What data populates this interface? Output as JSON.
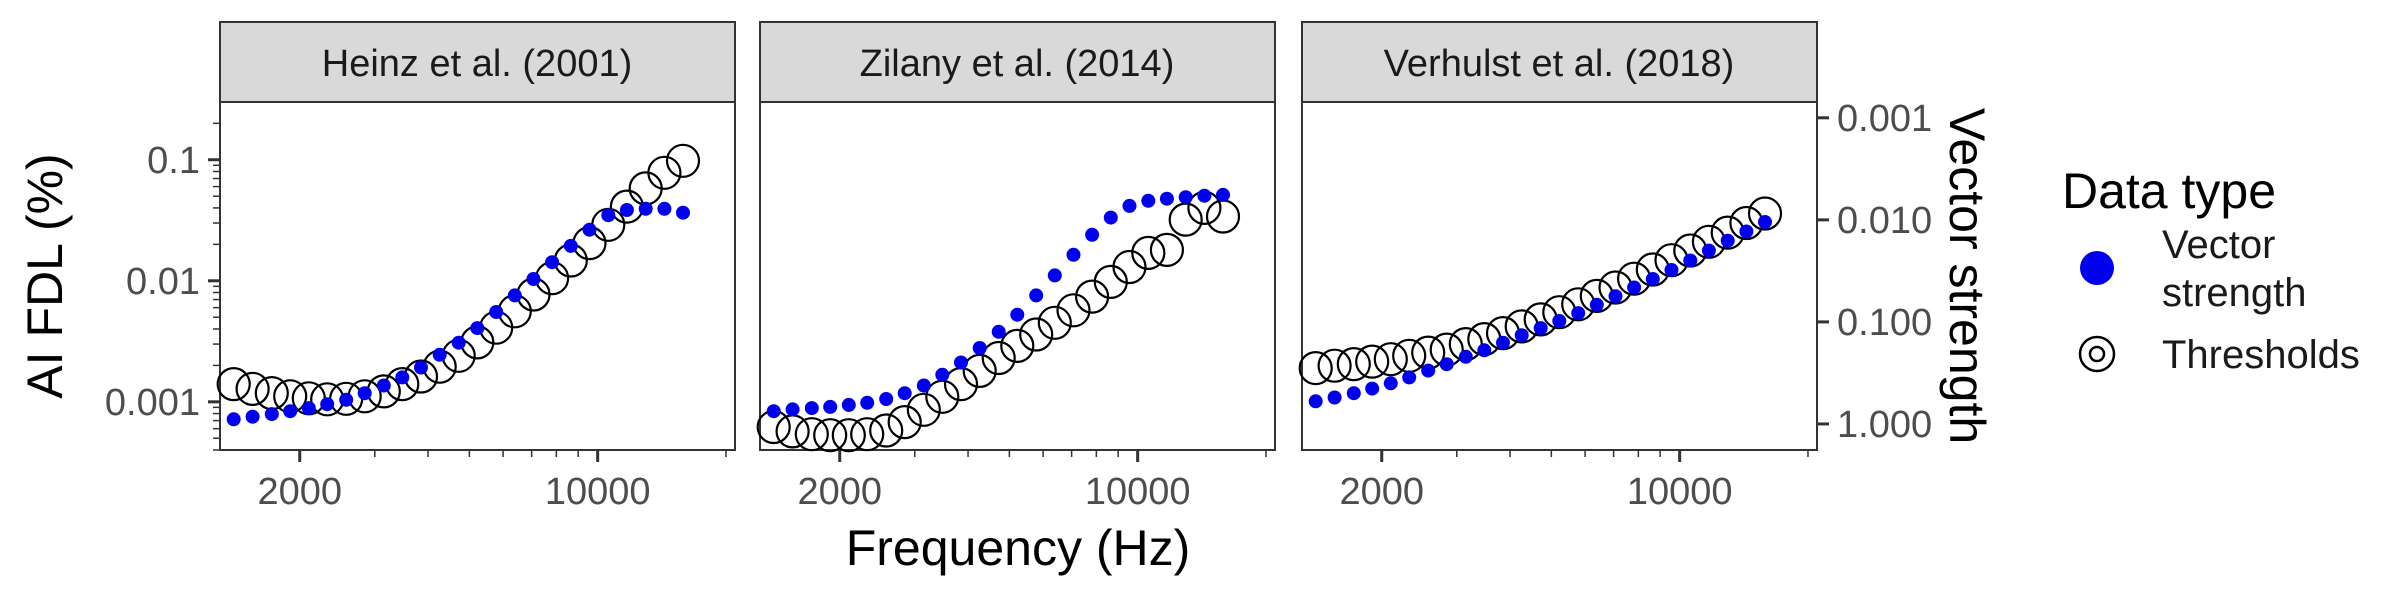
{
  "figure": {
    "xlabel": "Frequency (Hz)",
    "ylabel_left": "AI FDL (%)",
    "ylabel_right": "Vector strength",
    "legend_title": "Data type",
    "legend_items": [
      {
        "label_lines": [
          "Vector",
          "strength"
        ],
        "marker": "filled-circle",
        "color": "#0000ee"
      },
      {
        "label_lines": [
          "Thresholds"
        ],
        "marker": "open-circle",
        "color": "#000000"
      }
    ],
    "x_ticks": [
      {
        "value": 2000,
        "label": "2000"
      },
      {
        "value": 10000,
        "label": "10000"
      }
    ],
    "y_left_ticks": [
      {
        "value": 0.1,
        "label": "0.1"
      },
      {
        "value": 0.01,
        "label": "0.01"
      },
      {
        "value": 0.001,
        "label": "0.001"
      }
    ],
    "y_right_ticks": [
      {
        "value": 0.001,
        "label": "0.001"
      },
      {
        "value": 0.01,
        "label": "0.010"
      },
      {
        "value": 0.1,
        "label": "0.100"
      },
      {
        "value": 1.0,
        "label": "1.000"
      }
    ],
    "colors": {
      "vector": "#0000ee",
      "threshold": "#000000",
      "strip": "#d9d9d9",
      "panel_border": "#333333"
    }
  },
  "chart_data": {
    "type": "scatter",
    "x_scale": "log",
    "x_range": [
      1300,
      21000
    ],
    "y_left": {
      "label": "AI FDL (%)",
      "scale": "log",
      "range": [
        0.0004,
        0.3
      ]
    },
    "y_right": {
      "label": "Vector strength",
      "scale": "log-reversed",
      "range": [
        1.8,
        0.0007
      ]
    },
    "series_names": [
      "Vector strength",
      "Thresholds"
    ],
    "panels": [
      {
        "title": "Heinz et al. (2001)",
        "threshold_x": [
          1400,
          1550,
          1720,
          1900,
          2100,
          2320,
          2570,
          2840,
          3150,
          3480,
          3850,
          4260,
          4720,
          5220,
          5780,
          6390,
          7070,
          7820,
          8650,
          9570,
          10590,
          11710,
          12960,
          14340,
          15860
        ],
        "threshold_y": [
          0.0014,
          0.00128,
          0.00118,
          0.00111,
          0.00107,
          0.00105,
          0.00106,
          0.00111,
          0.00122,
          0.0014,
          0.00162,
          0.00195,
          0.0024,
          0.0031,
          0.0041,
          0.0056,
          0.0077,
          0.0105,
          0.0147,
          0.0205,
          0.029,
          0.041,
          0.058,
          0.078,
          0.098
        ],
        "vector_x": [
          1400,
          1550,
          1720,
          1900,
          2100,
          2320,
          2570,
          2840,
          3150,
          3480,
          3850,
          4260,
          4720,
          5220,
          5780,
          6390,
          7070,
          7820,
          8650,
          9570,
          10590,
          11710,
          12960,
          14340,
          15860
        ],
        "vector_y": [
          0.9,
          0.85,
          0.8,
          0.75,
          0.7,
          0.64,
          0.58,
          0.5,
          0.42,
          0.35,
          0.28,
          0.21,
          0.16,
          0.115,
          0.08,
          0.055,
          0.038,
          0.026,
          0.018,
          0.0125,
          0.009,
          0.008,
          0.0078,
          0.0078,
          0.0085
        ]
      },
      {
        "title": "Zilany et al. (2014)",
        "threshold_x": [
          1400,
          1550,
          1720,
          1900,
          2100,
          2320,
          2570,
          2840,
          3150,
          3480,
          3850,
          4260,
          4720,
          5220,
          5780,
          6390,
          7070,
          7820,
          8650,
          9570,
          10590,
          11710,
          12960,
          14340,
          15860
        ],
        "threshold_y": [
          0.00062,
          0.00057,
          0.00054,
          0.00053,
          0.00053,
          0.00054,
          0.00058,
          0.00068,
          0.00086,
          0.0011,
          0.0014,
          0.0018,
          0.0023,
          0.0029,
          0.0036,
          0.0045,
          0.0057,
          0.0074,
          0.0098,
          0.013,
          0.017,
          0.018,
          0.032,
          0.04,
          0.034
        ],
        "vector_x": [
          1400,
          1550,
          1720,
          1900,
          2100,
          2320,
          2570,
          2840,
          3150,
          3480,
          3850,
          4260,
          4720,
          5220,
          5780,
          6390,
          7070,
          7820,
          8650,
          9570,
          10590,
          11710,
          12960,
          14340,
          15860
        ],
        "vector_y": [
          0.75,
          0.72,
          0.7,
          0.68,
          0.65,
          0.62,
          0.57,
          0.5,
          0.42,
          0.33,
          0.25,
          0.18,
          0.125,
          0.085,
          0.055,
          0.035,
          0.022,
          0.014,
          0.0095,
          0.0073,
          0.0065,
          0.0062,
          0.006,
          0.0058,
          0.0057
        ]
      },
      {
        "title": "Verhulst et al. (2018)",
        "threshold_x": [
          1400,
          1550,
          1720,
          1900,
          2100,
          2320,
          2570,
          2840,
          3150,
          3480,
          3850,
          4260,
          4720,
          5220,
          5780,
          6390,
          7070,
          7820,
          8650,
          9570,
          10590,
          11710,
          12960,
          14340,
          15860
        ],
        "threshold_y": [
          0.0019,
          0.00199,
          0.00205,
          0.00215,
          0.00225,
          0.0024,
          0.00255,
          0.0027,
          0.003,
          0.0033,
          0.0037,
          0.0042,
          0.0048,
          0.0055,
          0.0064,
          0.0075,
          0.0088,
          0.0104,
          0.0124,
          0.0148,
          0.0178,
          0.021,
          0.025,
          0.03,
          0.036
        ],
        "vector_x": [
          1400,
          1550,
          1720,
          1900,
          2100,
          2320,
          2570,
          2840,
          3150,
          3480,
          3850,
          4260,
          4720,
          5220,
          5780,
          6390,
          7070,
          7820,
          8650,
          9570,
          10590,
          11710,
          12960,
          14340,
          15860
        ],
        "vector_y": [
          0.6,
          0.55,
          0.5,
          0.45,
          0.4,
          0.35,
          0.3,
          0.26,
          0.22,
          0.19,
          0.16,
          0.135,
          0.115,
          0.098,
          0.082,
          0.068,
          0.056,
          0.046,
          0.038,
          0.031,
          0.025,
          0.02,
          0.016,
          0.013,
          0.0105
        ]
      }
    ]
  }
}
